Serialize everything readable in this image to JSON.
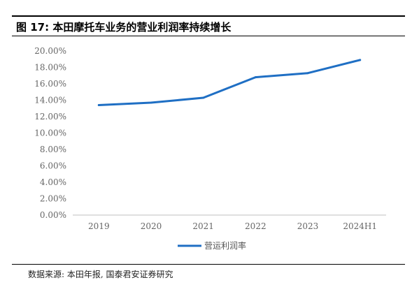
{
  "figure": {
    "title": "图 17:  本田摩托车业务的营业利润率持续增长"
  },
  "chart_data": {
    "type": "line",
    "categories": [
      "2019",
      "2020",
      "2021",
      "2022",
      "2023",
      "2024H1"
    ],
    "series": [
      {
        "name": "营运利润率",
        "values": [
          13.4,
          13.7,
          14.3,
          16.8,
          17.3,
          18.9
        ],
        "color": "#1f6fc4"
      }
    ],
    "yticks": [
      "0.00%",
      "2.00%",
      "4.00%",
      "6.00%",
      "8.00%",
      "10.00%",
      "12.00%",
      "14.00%",
      "16.00%",
      "18.00%",
      "20.00%"
    ],
    "ylim": [
      0,
      20
    ],
    "ylabel": "",
    "xlabel": "",
    "grid": false,
    "legend": "bottom-center"
  },
  "source": {
    "text": "数据来源: 本田年报, 国泰君安证券研究"
  }
}
